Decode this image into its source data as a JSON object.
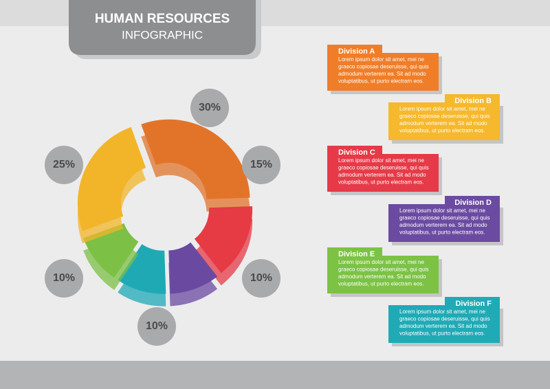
{
  "header": {
    "title": "HUMAN RESOURCES",
    "subtitle": "INFOGRAPHIC"
  },
  "pie": {
    "segments": [
      {
        "value": 30,
        "label": "30%",
        "color": "#e2742a"
      },
      {
        "value": 15,
        "label": "15%",
        "color": "#e63a44"
      },
      {
        "value": 10,
        "label": "10%",
        "color": "#6a4aa0"
      },
      {
        "value": 10,
        "label": "10%",
        "color": "#1fa9b5"
      },
      {
        "value": 10,
        "label": "10%",
        "color": "#7cc045"
      },
      {
        "value": 25,
        "label": "25%",
        "color": "#f2b52a"
      }
    ]
  },
  "divisions": [
    {
      "name": "Division A",
      "color": "#f07d27",
      "lines": [
        "Lorem ipsum dolor sit amet, mei ne",
        "graeco copiosae deseruisse, qui quis",
        "admodum verterem ea. Sit ad modo",
        "voluptatibus, ut purto electram eos."
      ]
    },
    {
      "name": "Division B",
      "color": "#f6b82c",
      "lines": [
        "Lorem ipsum dolor sit amet, mei ne",
        "graeco copiosae deseruisse, qui quis",
        "admodum verterem ea. Sit ad modo",
        "voluptatibus, ut purto electram eos."
      ]
    },
    {
      "name": "Division C",
      "color": "#e63a48",
      "lines": [
        "Lorem ipsum dolor sit amet, mei ne",
        "graeco copiosae deseruisse, qui quis",
        "admodum verterem ea. Sit ad modo",
        "voluptatibus, ut purto electram eos."
      ]
    },
    {
      "name": "Division D",
      "color": "#6b4ba1",
      "lines": [
        "Lorem ipsum dolor sit amet, mei ne",
        "graeco copiosae deseruisse, qui quis",
        "admodum verterem ea. Sit ad modo",
        "voluptatibus, ut purto electram eos."
      ]
    },
    {
      "name": "Division E",
      "color": "#7cc244",
      "lines": [
        "Lorem ipsum dolor sit amet, mei ne",
        "graeco copiosae deseruisse, qui quis",
        "admodum verterem ea. Sit ad modo",
        "voluptatibus, ut purto electram eos."
      ]
    },
    {
      "name": "Division F",
      "color": "#20aab6",
      "lines": [
        "Lorem ipsum dolor sit amet, mei ne",
        "graeco copiosae deseruisse, qui quis",
        "admodum verterem ea. Sit ad modo",
        "voluptatibus, ut purto electram eos."
      ]
    }
  ]
}
